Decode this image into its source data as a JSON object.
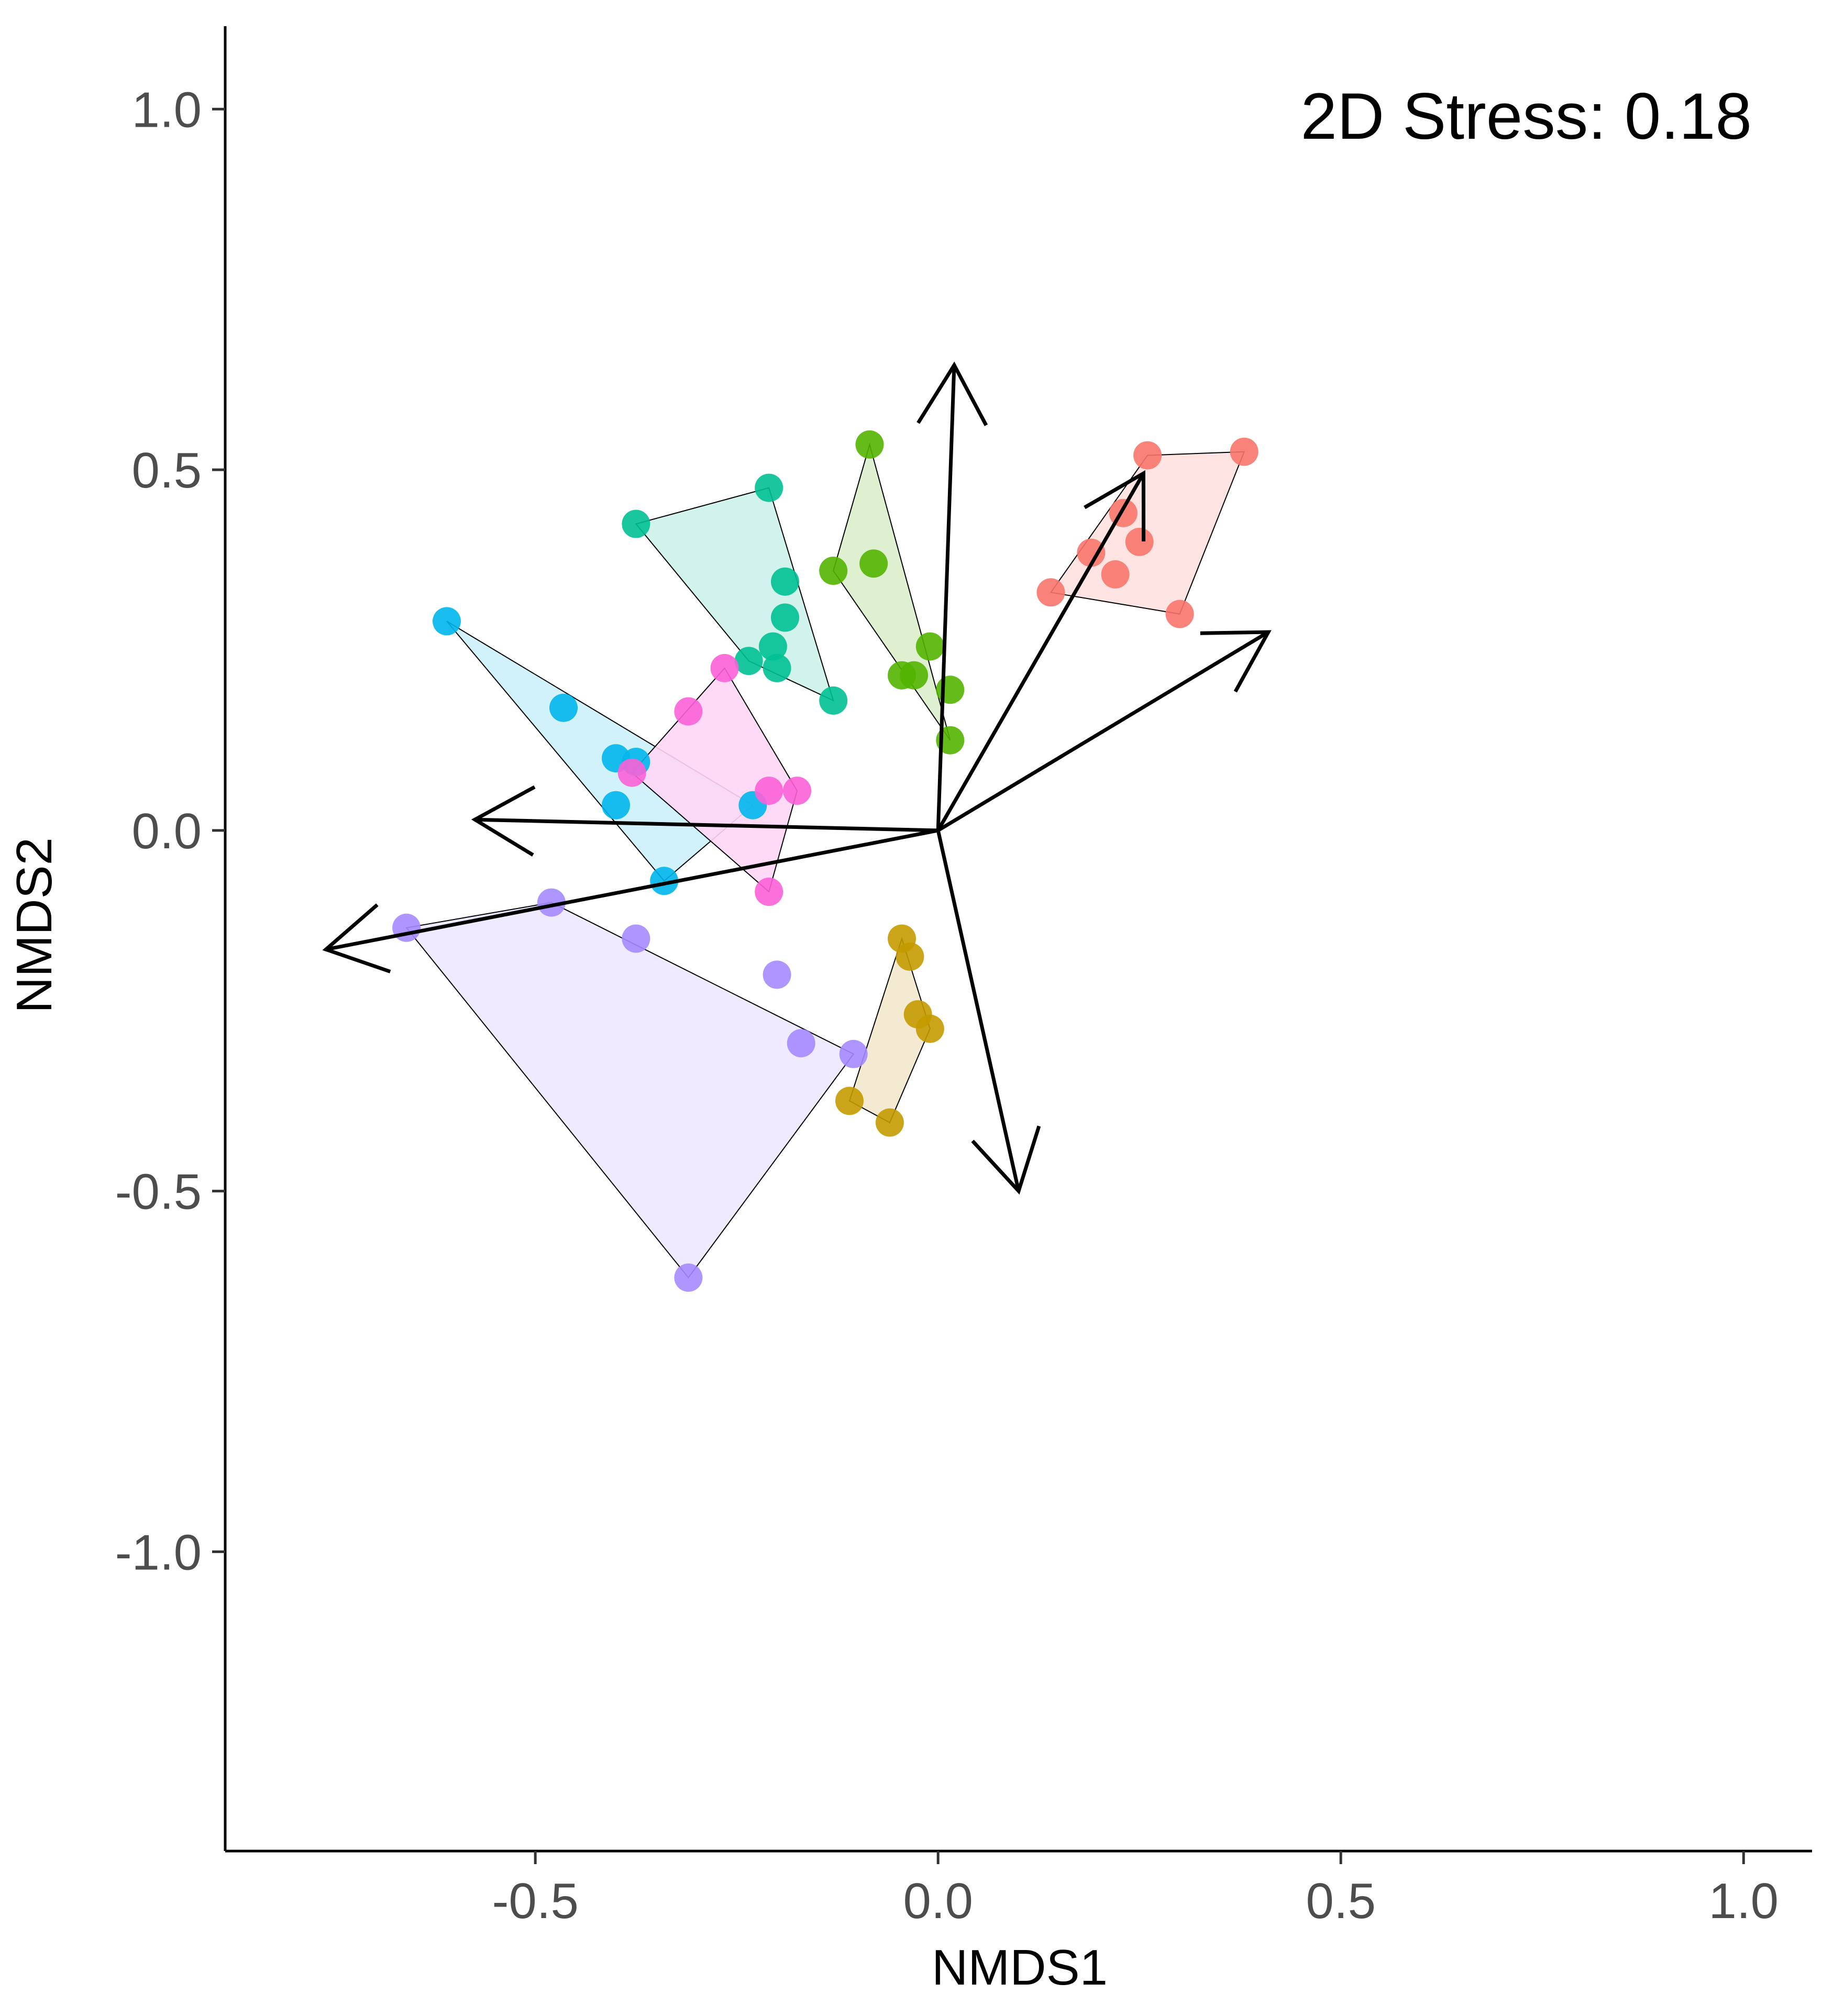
{
  "chart_data": {
    "type": "scatter",
    "subtype": "nmds-ordination",
    "xlabel": "NMDS1",
    "ylabel": "NMDS2",
    "xlim": [
      -0.885,
      1.085
    ],
    "ylim": [
      -1.415,
      1.115
    ],
    "x_ticks": [
      -0.5,
      0.0,
      0.5,
      1.0
    ],
    "x_tick_labels": [
      "-0.5",
      "0.0",
      "0.5",
      "1.0"
    ],
    "y_ticks": [
      1.0,
      0.5,
      0.0,
      -0.5,
      -1.0
    ],
    "y_tick_labels": [
      "1.0",
      "0.5",
      "0.0",
      "-0.5",
      "-1.0"
    ],
    "annotation": "2D Stress: 0.18",
    "grid": false,
    "legend": "none",
    "series": [
      {
        "color": "#F8766D",
        "fill": "#FDE1DF",
        "points": [
          [
            0.38,
            0.525
          ],
          [
            0.26,
            0.52
          ],
          [
            0.23,
            0.44
          ],
          [
            0.19,
            0.385
          ],
          [
            0.25,
            0.4
          ],
          [
            0.22,
            0.355
          ],
          [
            0.14,
            0.33
          ],
          [
            0.3,
            0.3
          ]
        ],
        "hull": [
          [
            0.26,
            0.52
          ],
          [
            0.38,
            0.525
          ],
          [
            0.3,
            0.3
          ],
          [
            0.14,
            0.33
          ]
        ]
      },
      {
        "color": "#C49A00",
        "fill": "#F2E8CC",
        "points": [
          [
            -0.045,
            -0.15
          ],
          [
            -0.035,
            -0.175
          ],
          [
            -0.025,
            -0.255
          ],
          [
            -0.01,
            -0.275
          ],
          [
            -0.11,
            -0.375
          ],
          [
            -0.06,
            -0.405
          ]
        ],
        "hull": [
          [
            -0.045,
            -0.15
          ],
          [
            -0.01,
            -0.275
          ],
          [
            -0.06,
            -0.405
          ],
          [
            -0.11,
            -0.375
          ]
        ]
      },
      {
        "color": "#53B400",
        "fill": "#DCEECC",
        "points": [
          [
            -0.085,
            0.535
          ],
          [
            -0.08,
            0.37
          ],
          [
            -0.13,
            0.36
          ],
          [
            -0.01,
            0.255
          ],
          [
            -0.045,
            0.215
          ],
          [
            -0.03,
            0.215
          ],
          [
            0.015,
            0.195
          ],
          [
            0.015,
            0.125
          ]
        ],
        "hull": [
          [
            -0.085,
            0.535
          ],
          [
            0.015,
            0.125
          ],
          [
            -0.13,
            0.36
          ]
        ]
      },
      {
        "color": "#00C094",
        "fill": "#CCF2E9",
        "points": [
          [
            -0.375,
            0.425
          ],
          [
            -0.21,
            0.475
          ],
          [
            -0.19,
            0.345
          ],
          [
            -0.19,
            0.295
          ],
          [
            -0.205,
            0.255
          ],
          [
            -0.235,
            0.235
          ],
          [
            -0.2,
            0.225
          ],
          [
            -0.13,
            0.18
          ]
        ],
        "hull": [
          [
            -0.375,
            0.425
          ],
          [
            -0.21,
            0.475
          ],
          [
            -0.13,
            0.18
          ],
          [
            -0.235,
            0.235
          ]
        ]
      },
      {
        "color": "#00B6EB",
        "fill": "#CCF0FB",
        "points": [
          [
            -0.61,
            0.29
          ],
          [
            -0.465,
            0.17
          ],
          [
            -0.4,
            0.1
          ],
          [
            -0.375,
            0.095
          ],
          [
            -0.4,
            0.035
          ],
          [
            -0.23,
            0.035
          ],
          [
            -0.34,
            -0.07
          ]
        ],
        "hull": [
          [
            -0.61,
            0.29
          ],
          [
            -0.23,
            0.035
          ],
          [
            -0.34,
            -0.07
          ]
        ]
      },
      {
        "color": "#A58AFF",
        "fill": "#EDE8FF",
        "points": [
          [
            -0.66,
            -0.135
          ],
          [
            -0.48,
            -0.1
          ],
          [
            -0.375,
            -0.15
          ],
          [
            -0.2,
            -0.2
          ],
          [
            -0.17,
            -0.295
          ],
          [
            -0.105,
            -0.31
          ],
          [
            -0.31,
            -0.62
          ]
        ],
        "hull": [
          [
            -0.66,
            -0.135
          ],
          [
            -0.48,
            -0.1
          ],
          [
            -0.105,
            -0.31
          ],
          [
            -0.31,
            -0.62
          ]
        ]
      },
      {
        "color": "#FB61D7",
        "fill": "#FED6F6",
        "points": [
          [
            -0.265,
            0.225
          ],
          [
            -0.31,
            0.165
          ],
          [
            -0.38,
            0.08
          ],
          [
            -0.21,
            0.055
          ],
          [
            -0.175,
            0.055
          ],
          [
            -0.21,
            -0.085
          ]
        ],
        "hull": [
          [
            -0.265,
            0.225
          ],
          [
            -0.175,
            0.055
          ],
          [
            -0.21,
            -0.085
          ],
          [
            -0.38,
            0.08
          ]
        ]
      }
    ],
    "vectors": [
      [
        0.02,
        0.645
      ],
      [
        0.255,
        0.495
      ],
      [
        0.41,
        0.275
      ],
      [
        -0.575,
        0.015
      ],
      [
        -0.76,
        -0.165
      ],
      [
        0.1,
        -0.5
      ]
    ],
    "vector_origin": [
      0,
      0
    ]
  }
}
